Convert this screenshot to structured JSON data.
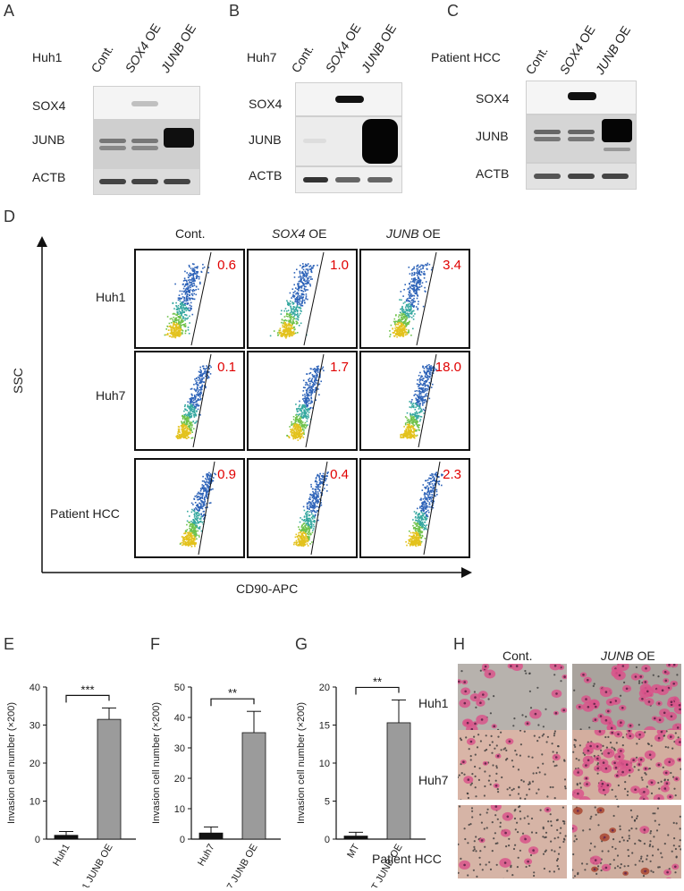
{
  "panels": {
    "A": "A",
    "B": "B",
    "C": "C",
    "D": "D",
    "E": "E",
    "F": "F",
    "G": "G",
    "H": "H"
  },
  "western": {
    "A": {
      "cell": "Huh1",
      "lanes": [
        "Cont.",
        "SOX4",
        "JUNB"
      ],
      "oe": "OE",
      "rows": [
        "SOX4",
        "JUNB",
        "ACTB"
      ]
    },
    "B": {
      "cell": "Huh7",
      "lanes": [
        "Cont.",
        "SOX4",
        "JUNB"
      ],
      "oe": "OE",
      "rows": [
        "SOX4",
        "JUNB",
        "ACTB"
      ]
    },
    "C": {
      "cell": "Patient HCC",
      "lanes": [
        "Cont.",
        "SOX4",
        "JUNB"
      ],
      "oe": "OE",
      "rows": [
        "SOX4",
        "JUNB",
        "ACTB"
      ]
    }
  },
  "flow": {
    "cols": [
      {
        "gene": "",
        "label": "Cont."
      },
      {
        "gene": "SOX4",
        "label": "OE"
      },
      {
        "gene": "JUNB",
        "label": "OE"
      }
    ],
    "rows": [
      "Huh1",
      "Huh7",
      "Patient HCC"
    ],
    "values": [
      [
        "0.6",
        "1.0",
        "3.4"
      ],
      [
        "0.1",
        "1.7",
        "18.0"
      ],
      [
        "0.9",
        "0.4",
        "2.3"
      ]
    ],
    "yaxis": "SSC",
    "xaxis": "CD90-APC"
  },
  "chart_data": [
    {
      "type": "bar",
      "panel": "E",
      "categories": [
        "Huh1",
        "Huh1 JUNB OE"
      ],
      "values": [
        1,
        31.5
      ],
      "errors": [
        1,
        3
      ],
      "ylabel": "Invasion cell number (×200)",
      "ylim": [
        0,
        40
      ],
      "yticks": [
        "0",
        "10",
        "20",
        "30",
        "40"
      ],
      "sig": "***"
    },
    {
      "type": "bar",
      "panel": "F",
      "categories": [
        "Huh7",
        "Huh7 JUNB OE"
      ],
      "values": [
        2,
        35
      ],
      "errors": [
        2,
        7
      ],
      "ylabel": "Invasion cell number (×200)",
      "ylim": [
        0,
        50
      ],
      "yticks": [
        "0",
        "10",
        "20",
        "30",
        "40",
        "50"
      ],
      "sig": "**"
    },
    {
      "type": "bar",
      "panel": "G",
      "categories": [
        "MT",
        "MT JUNB OE"
      ],
      "values": [
        0.4,
        15.3
      ],
      "errors": [
        0.5,
        3
      ],
      "ylabel": "Invasion cell number (×200)",
      "ylim": [
        0,
        20
      ],
      "yticks": [
        "0",
        "5",
        "10",
        "15",
        "20"
      ],
      "sig": "**"
    }
  ],
  "invasion": {
    "cols": [
      {
        "gene": "",
        "label": "Cont."
      },
      {
        "gene": "JUNB",
        "label": "OE"
      }
    ],
    "rows": [
      "Huh1",
      "Huh7",
      "Patient HCC"
    ]
  },
  "colors": {
    "bar_control": "#111111",
    "bar_oe": "#9b9b9b",
    "pct": "#e00000"
  }
}
